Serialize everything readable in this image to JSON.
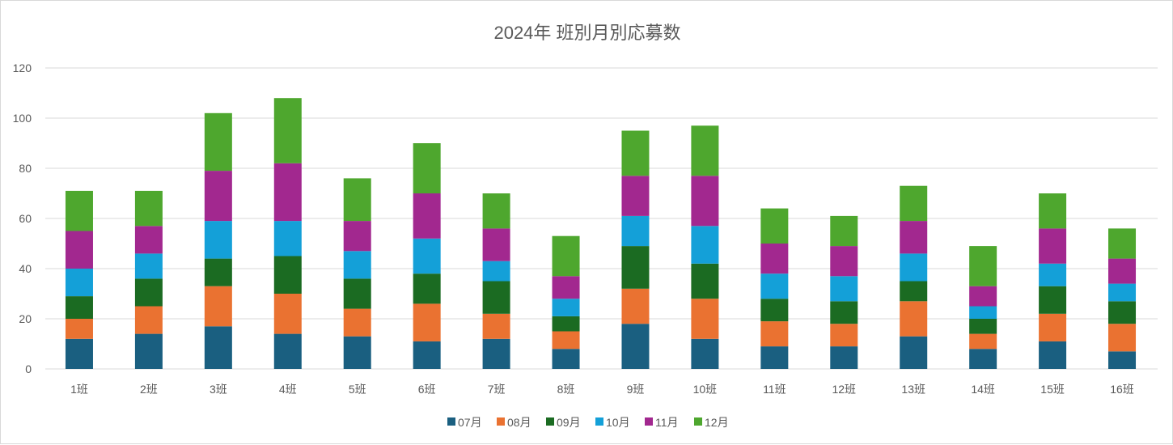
{
  "chart_data": {
    "type": "bar",
    "stacked": true,
    "title": "2024年 班別月別応募数",
    "xlabel": "",
    "ylabel": "",
    "ylim": [
      0,
      120
    ],
    "yticks": [
      0,
      20,
      40,
      60,
      80,
      100,
      120
    ],
    "grid": true,
    "legend_position": "bottom",
    "categories": [
      "1班",
      "2班",
      "3班",
      "4班",
      "5班",
      "6班",
      "7班",
      "8班",
      "9班",
      "10班",
      "11班",
      "12班",
      "13班",
      "14班",
      "15班",
      "16班"
    ],
    "series": [
      {
        "name": "07月",
        "color": "#1a5f80",
        "values": [
          12,
          14,
          17,
          14,
          13,
          11,
          12,
          8,
          18,
          12,
          9,
          9,
          13,
          8,
          11,
          7
        ]
      },
      {
        "name": "08月",
        "color": "#ea7231",
        "values": [
          8,
          11,
          16,
          16,
          11,
          15,
          10,
          7,
          14,
          16,
          10,
          9,
          14,
          6,
          11,
          11
        ]
      },
      {
        "name": "09月",
        "color": "#1b6b22",
        "values": [
          9,
          11,
          11,
          15,
          12,
          12,
          13,
          6,
          17,
          14,
          9,
          9,
          8,
          6,
          11,
          9
        ]
      },
      {
        "name": "10月",
        "color": "#14a0d8",
        "values": [
          11,
          10,
          15,
          14,
          11,
          14,
          8,
          7,
          12,
          15,
          10,
          10,
          11,
          5,
          9,
          7
        ]
      },
      {
        "name": "11月",
        "color": "#a2288f",
        "values": [
          15,
          11,
          20,
          23,
          12,
          18,
          13,
          9,
          16,
          20,
          12,
          12,
          13,
          8,
          14,
          10
        ]
      },
      {
        "name": "12月",
        "color": "#4ea72e",
        "values": [
          16,
          14,
          23,
          26,
          17,
          20,
          14,
          16,
          18,
          20,
          14,
          12,
          14,
          16,
          14,
          12
        ]
      }
    ]
  }
}
